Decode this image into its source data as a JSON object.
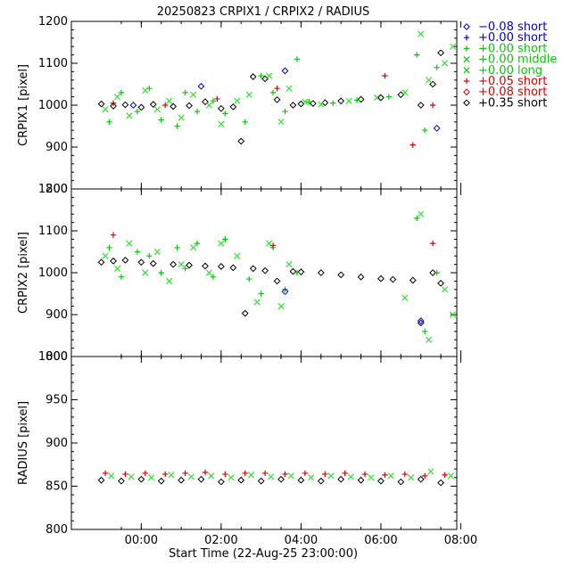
{
  "chart_data": {
    "type": "scatter",
    "title": "20250823 CRPIX1 / CRPIX2 / RADIUS",
    "xlabel": "Start Time (22-Aug-25 23:00:00)",
    "x_unit": "hours since 22-Aug-25 23:00:00",
    "xlim": [
      -0.75,
      8.9
    ],
    "x_ticks": [
      {
        "x": 1,
        "label": "00:00"
      },
      {
        "x": 3,
        "label": "02:00"
      },
      {
        "x": 5,
        "label": "04:00"
      },
      {
        "x": 7,
        "label": "06:00"
      },
      {
        "x": 9,
        "label": "08:00"
      }
    ],
    "legend": [
      {
        "symbol": "diamond",
        "color": "#0000cc",
        "label": "−0.08 short"
      },
      {
        "symbol": "plus",
        "color": "#0000cc",
        "label": "+0.00 short"
      },
      {
        "symbol": "plus",
        "color": "#00cc00",
        "label": "+0.00 short"
      },
      {
        "symbol": "cross",
        "color": "#00cc00",
        "label": "+0.00 middle"
      },
      {
        "symbol": "cross",
        "color": "#00cc00",
        "label": "+0.00 long"
      },
      {
        "symbol": "plus",
        "color": "#dd0000",
        "label": "+0.05 short"
      },
      {
        "symbol": "diamond",
        "color": "#dd0000",
        "label": "+0.08 short"
      },
      {
        "symbol": "diamond",
        "color": "#000000",
        "label": "+0.35 short"
      }
    ],
    "panels": [
      {
        "ylabel": "CRPIX1 [pixel]",
        "ylim": [
          800,
          1200
        ],
        "yticks": [
          800,
          900,
          1000,
          1100,
          1200
        ],
        "series": [
          {
            "symbol": "diamond",
            "color": "#000000",
            "x": [
              0.0,
              0.3,
              0.6,
              1.0,
              1.3,
              1.8,
              2.2,
              2.6,
              3.0,
              3.3,
              3.5,
              3.8,
              4.1,
              4.4,
              4.8,
              5.0,
              5.3,
              5.6,
              6.0,
              6.5,
              7.0,
              7.5,
              8.0,
              8.3,
              8.5
            ],
            "y": [
              1003,
              998,
              1001,
              995,
              1002,
              997,
              999,
              1008,
              992,
              996,
              914,
              1068,
              1063,
              1013,
              1000,
              1003,
              1004,
              1006,
              1010,
              1014,
              1018,
              1025,
              1000,
              1050,
              1125
            ]
          },
          {
            "symbol": "plus",
            "color": "#00cc00",
            "x": [
              0.2,
              0.5,
              0.9,
              1.2,
              1.5,
              1.9,
              2.1,
              2.4,
              2.8,
              3.1,
              3.6,
              4.0,
              4.3,
              4.6,
              4.9,
              5.2,
              5.8,
              6.4,
              7.2,
              7.9,
              8.1,
              8.4
            ],
            "y": [
              960,
              1030,
              985,
              1040,
              965,
              950,
              1030,
              985,
              1010,
              980,
              960,
              1070,
              1030,
              985,
              1110,
              1008,
              1005,
              1012,
              1020,
              1120,
              940,
              1090
            ]
          },
          {
            "symbol": "cross",
            "color": "#33dd33",
            "x": [
              0.1,
              0.4,
              0.7,
              1.1,
              1.4,
              1.7,
              2.0,
              2.3,
              2.7,
              3.0,
              3.4,
              3.7,
              4.2,
              4.5,
              4.7,
              5.1,
              5.5,
              6.2,
              6.9,
              7.6,
              8.0,
              8.2,
              8.6,
              8.8
            ],
            "y": [
              990,
              1020,
              975,
              1035,
              990,
              1010,
              970,
              1025,
              1000,
              955,
              1010,
              1025,
              1070,
              960,
              1040,
              1008,
              1002,
              1010,
              1018,
              1030,
              1170,
              1060,
              1100,
              1140
            ]
          },
          {
            "symbol": "plus",
            "color": "#dd0000",
            "x": [
              0.3,
              1.6,
              2.9,
              4.4,
              7.1,
              7.8,
              8.3
            ],
            "y": [
              1005,
              1000,
              1015,
              1040,
              1070,
              905,
              1000
            ]
          },
          {
            "symbol": "diamond",
            "color": "#0000cc",
            "x": [
              0.8,
              2.5,
              4.6,
              8.4
            ],
            "y": [
              1000,
              1045,
              1082,
              945
            ]
          }
        ]
      },
      {
        "ylabel": "CRPIX2 [pixel]",
        "ylim": [
          800,
          1200
        ],
        "yticks": [
          800,
          900,
          1000,
          1100,
          1200
        ],
        "series": [
          {
            "symbol": "diamond",
            "color": "#000000",
            "x": [
              0.0,
              0.3,
              0.6,
              1.0,
              1.3,
              1.8,
              2.2,
              2.6,
              3.0,
              3.3,
              3.6,
              3.8,
              4.1,
              4.4,
              4.8,
              5.0,
              5.5,
              6.0,
              6.5,
              7.0,
              7.3,
              7.8,
              8.0,
              8.3,
              8.5
            ],
            "y": [
              1025,
              1028,
              1030,
              1025,
              1022,
              1020,
              1018,
              1016,
              1015,
              1012,
              903,
              1010,
              1005,
              980,
              1003,
              1002,
              1000,
              995,
              990,
              986,
              984,
              982,
              880,
              1000,
              975
            ]
          },
          {
            "symbol": "plus",
            "color": "#00cc00",
            "x": [
              0.2,
              0.5,
              0.9,
              1.2,
              1.5,
              1.9,
              2.1,
              2.4,
              2.8,
              3.1,
              3.7,
              4.0,
              4.3,
              4.6,
              4.9,
              7.9,
              8.1,
              8.4
            ],
            "y": [
              1060,
              990,
              1050,
              1040,
              1000,
              1060,
              1010,
              1070,
              990,
              1080,
              985,
              950,
              1060,
              960,
              1000,
              1130,
              860,
              1000
            ]
          },
          {
            "symbol": "cross",
            "color": "#33dd33",
            "x": [
              0.1,
              0.4,
              0.7,
              1.1,
              1.4,
              1.7,
              2.0,
              2.3,
              2.7,
              3.0,
              3.4,
              3.9,
              4.2,
              4.5,
              4.7,
              7.6,
              8.0,
              8.2,
              8.6,
              8.8
            ],
            "y": [
              1040,
              1010,
              1070,
              1000,
              1050,
              980,
              1020,
              1060,
              1000,
              1070,
              1040,
              930,
              1070,
              920,
              1020,
              940,
              1140,
              840,
              960,
              900
            ]
          },
          {
            "symbol": "plus",
            "color": "#dd0000",
            "x": [
              0.3,
              4.3,
              8.3
            ],
            "y": [
              1090,
              1065,
              1070
            ]
          },
          {
            "symbol": "diamond",
            "color": "#0000cc",
            "x": [
              4.6,
              8.0
            ],
            "y": [
              955,
              885
            ]
          }
        ]
      },
      {
        "ylabel": "RADIUS [pixel]",
        "ylim": [
          800,
          1000
        ],
        "yticks": [
          800,
          850,
          900,
          950,
          1000
        ],
        "series": [
          {
            "symbol": "diamond",
            "color": "#000000",
            "x": [
              0.0,
              0.5,
              1.0,
              1.5,
              2.0,
              2.5,
              3.0,
              3.5,
              4.0,
              4.5,
              5.0,
              5.5,
              6.0,
              6.5,
              7.0,
              7.5,
              8.0,
              8.5
            ],
            "y": [
              857,
              856,
              858,
              856,
              857,
              858,
              855,
              857,
              856,
              858,
              857,
              856,
              858,
              857,
              856,
              855,
              858,
              854
            ]
          },
          {
            "symbol": "cross",
            "color": "#33dd33",
            "x": [
              0.25,
              0.75,
              1.25,
              1.75,
              2.25,
              2.75,
              3.25,
              3.75,
              4.25,
              4.75,
              5.25,
              5.75,
              6.25,
              6.75,
              7.25,
              7.75,
              8.25,
              8.75
            ],
            "y": [
              862,
              861,
              860,
              863,
              861,
              862,
              860,
              863,
              861,
              862,
              860,
              862,
              861,
              860,
              862,
              860,
              867,
              862
            ]
          },
          {
            "symbol": "plus",
            "color": "#dd0000",
            "x": [
              0.1,
              0.6,
              1.1,
              1.6,
              2.1,
              2.6,
              3.1,
              3.6,
              4.1,
              4.6,
              5.1,
              5.6,
              6.1,
              6.6,
              7.1,
              7.6,
              8.1,
              8.6
            ],
            "y": [
              865,
              864,
              865,
              864,
              865,
              866,
              864,
              865,
              865,
              864,
              865,
              864,
              865,
              864,
              863,
              864,
              862,
              863
            ]
          }
        ]
      }
    ]
  }
}
